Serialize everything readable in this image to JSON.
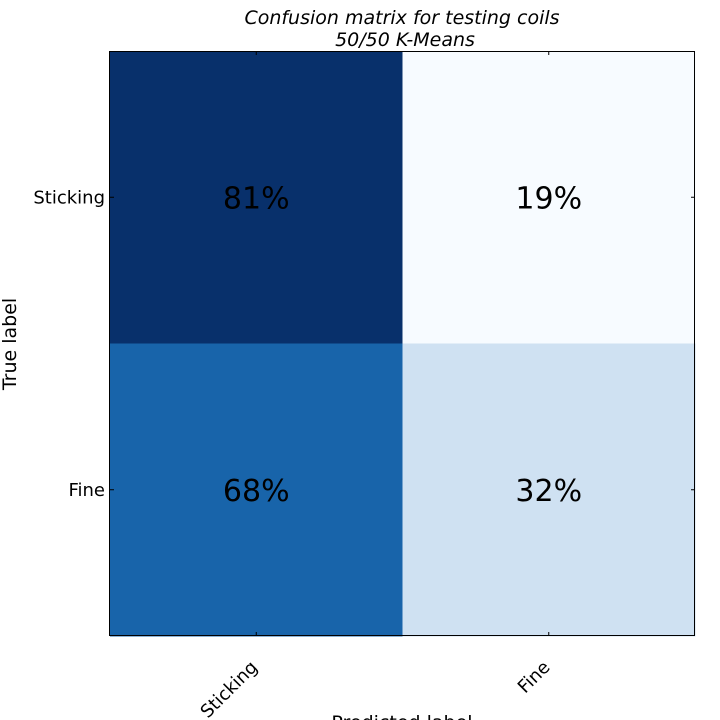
{
  "chart_data": {
    "type": "heatmap",
    "title": "Confusion matrix for testing coils",
    "subtitle": "50/50 K-Means",
    "xlabel": "Predicted label",
    "ylabel": "True label",
    "rows": [
      "Sticking",
      "Fine"
    ],
    "columns": [
      "Sticking",
      "Fine"
    ],
    "values": [
      [
        81,
        19
      ],
      [
        68,
        32
      ]
    ],
    "cell_labels": [
      [
        "81%",
        "19%"
      ],
      [
        "68%",
        "32%"
      ]
    ],
    "colormap": "Blues",
    "colors": [
      [
        "#08306b",
        "#f7fbff"
      ],
      [
        "#1864aa",
        "#cfe1f2"
      ]
    ],
    "grid": false
  }
}
